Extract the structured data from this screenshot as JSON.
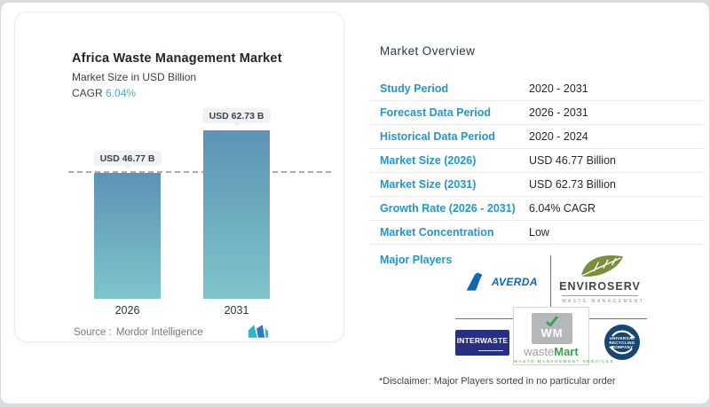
{
  "chart_card": {
    "title": "Africa Waste Management Market",
    "subtitle": "Market Size in USD Billion",
    "cagr_label": "CAGR",
    "cagr_value": "6.04%",
    "bars": [
      {
        "label": "USD 46.77 B",
        "year": "2026"
      },
      {
        "label": "USD 62.73 B",
        "year": "2031"
      }
    ],
    "source_label": "Source :",
    "source_value": "Mordor Intelligence"
  },
  "chart_data": {
    "type": "bar",
    "title": "Africa Waste Management Market",
    "ylabel": "Market Size in USD Billion",
    "categories": [
      "2026",
      "2031"
    ],
    "values": [
      46.77,
      62.73
    ],
    "bar_labels": [
      "USD 46.77 B",
      "USD 62.73 B"
    ],
    "cagr": "6.04%",
    "reference_line_value": 46.77,
    "legend": false,
    "grid": false
  },
  "overview": {
    "title": "Market Overview",
    "rows": [
      {
        "label": "Study Period",
        "value": "2020 - 2031"
      },
      {
        "label": "Forecast Data Period",
        "value": "2026 - 2031"
      },
      {
        "label": "Historical Data Period",
        "value": "2020 - 2024"
      },
      {
        "label": "Market Size (2026)",
        "value": "USD 46.77 Billion"
      },
      {
        "label": "Market Size (2031)",
        "value": "USD 62.73 Billion"
      },
      {
        "label": "Growth Rate (2026 - 2031)",
        "value": "6.04% CAGR"
      },
      {
        "label": "Market Concentration",
        "value": "Low"
      }
    ],
    "major_players_label": "Major Players",
    "players": {
      "averda": {
        "name": "AVERDA"
      },
      "enviroserv": {
        "name": "ENVIROSERV",
        "tagline": "WASTE MANAGEMENT"
      },
      "interwaste": {
        "name": "INTERWASTE"
      },
      "wastemart": {
        "monogram": "WM",
        "name_gray": "waste",
        "name_green": "Mart",
        "tagline": "WASTE MANAGEMENT SERVICES"
      },
      "universal": {
        "line1": "UNIVERSAL",
        "line2": "RECYCLING",
        "line3": "COMPANY"
      }
    },
    "disclaimer": "*Disclaimer: Major Players sorted in no particular order"
  },
  "colors": {
    "label_blue": "#2496c8",
    "value_dark": "#23272e",
    "cagr_teal": "#57a8bb",
    "bar_top": "#5d92b5",
    "bar_bottom": "#7fc5cb",
    "averda_blue": "#1464b3",
    "enviroserv_olive": "#7b8e3b",
    "interwaste_navy": "#262f80",
    "wastemart_green": "#3ba24b",
    "universal_navy": "#174673",
    "mordor_teal": "#35b4c2",
    "mordor_blue": "#2a7cc0"
  }
}
